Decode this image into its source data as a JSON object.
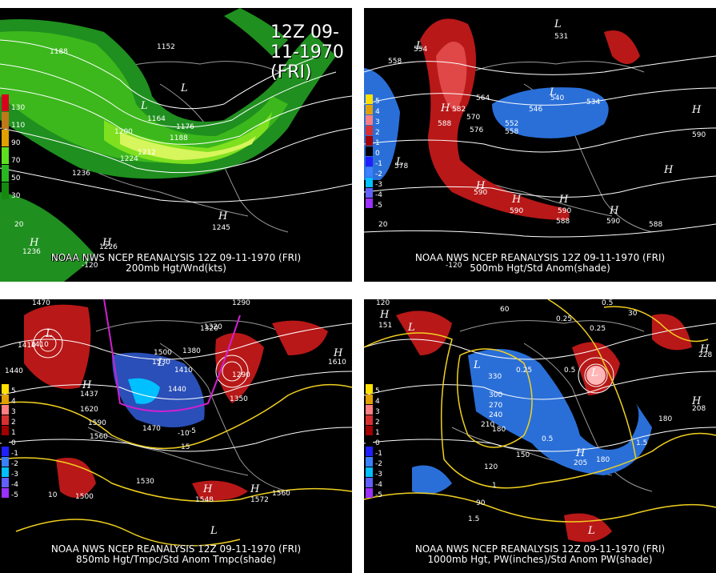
{
  "banner": "12Z 09-11-1970 (FRI)",
  "panels": [
    {
      "line1": "NOAA NWS NCEP REANALYSIS 12Z 09-11-1970 (FRI)",
      "line2": "200mb Hgt/Wnd(kts)",
      "scale": [
        "130",
        "110",
        "90",
        "70",
        "50",
        "30"
      ],
      "values": [
        "1152",
        "1188",
        "1164",
        "1176",
        "1188",
        "1200",
        "1212",
        "1224",
        "1236",
        "1245",
        "1236",
        "1226",
        "-120",
        "20"
      ]
    },
    {
      "line1": "NOAA NWS NCEP REANALYSIS 12Z 09-11-1970 (FRI)",
      "line2": "500mb Hgt/Std Anom(shade)",
      "scale": [
        "5",
        "4",
        "3",
        "2",
        "1",
        "0",
        "-1",
        "-2",
        "-3",
        "-4",
        "-5"
      ],
      "values": [
        "554",
        "558",
        "582",
        "564",
        "570",
        "576",
        "546",
        "552",
        "558",
        "540",
        "534",
        "531",
        "588",
        "578",
        "590",
        "590",
        "590",
        "588",
        "590",
        "588",
        "590",
        "-120",
        "20"
      ]
    },
    {
      "line1": "NOAA NWS NCEP REANALYSIS 12Z 09-11-1970 (FRI)",
      "line2": "850mb Hgt/Tmpc/Std Anom Tmpc(shade)",
      "scale": [
        "5",
        "4",
        "3",
        "2",
        "1",
        "0",
        "-1",
        "-2",
        "-3",
        "-4",
        "-5"
      ],
      "values": [
        "1470",
        "1410",
        "1440",
        "1290",
        "1320",
        "1380",
        "1500",
        "1530",
        "1410",
        "1440",
        "1290",
        "1350",
        "1320",
        "1410",
        "1437",
        "1620",
        "1590",
        "1560",
        "1470",
        "1530",
        "1500",
        "1548",
        "1572",
        "1560",
        "1610",
        "-10",
        "-5",
        "10",
        "15"
      ]
    },
    {
      "line1": "NOAA NWS NCEP REANALYSIS 12Z 09-11-1970 (FRI)",
      "line2": "1000mb Hgt, PW(inches)/Std Anom PW(shade)",
      "scale": [
        "5",
        "4",
        "3",
        "2",
        "1",
        "0",
        "-1",
        "-2",
        "-3",
        "-4",
        "-5"
      ],
      "values": [
        "120",
        "60",
        "30",
        "151",
        "0.25",
        "0.25",
        "0.5",
        "0.25",
        "0.5",
        "330",
        "300",
        "270",
        "240",
        "210",
        "180",
        "150",
        "120",
        "90",
        "1.5",
        "1",
        "205",
        "180",
        "208",
        "228",
        "180",
        "0.5",
        "1.5"
      ]
    }
  ],
  "colors": {
    "jet": [
      "#1f8f1f",
      "#3cb81c",
      "#7fe020",
      "#b8f030",
      "#d7f55c"
    ],
    "anom_pos": [
      "#ffb6b6",
      "#e04848",
      "#b00000"
    ],
    "anom_neg": [
      "#8cc0ff",
      "#2a6fd8",
      "#2a4fb8"
    ],
    "contour": "#ffffff",
    "yellow": "#f0d020",
    "magenta": "#d020d0"
  },
  "scale_colors": {
    "jet": [
      "#d8001c",
      "#c07818",
      "#e0a000",
      "#5ee020",
      "#2ab820",
      "#168a10"
    ],
    "anom": [
      "#ffe000",
      "#e0a000",
      "#ff8080",
      "#d83030",
      "#a00000",
      "#000000",
      "#2020ff",
      "#3a80ff",
      "#00c0ff",
      "#6060ff",
      "#9b30ff"
    ]
  }
}
